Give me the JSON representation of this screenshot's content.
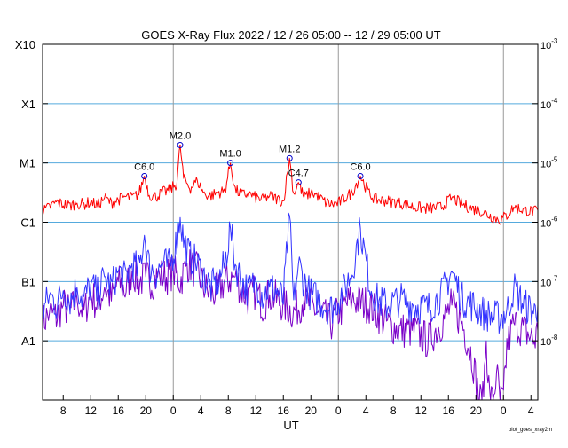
{
  "chart_data": {
    "type": "line",
    "title": "GOES X-Ray Flux   2022 / 12 / 26   05:00 -- 12 / 29   05:00   UT",
    "xlabel": "UT",
    "footer_note": "plot_goes_xray2m",
    "x_range_hours": [
      5,
      77
    ],
    "x_ticks": [
      {
        "h": 8,
        "label": "8"
      },
      {
        "h": 12,
        "label": "12"
      },
      {
        "h": 16,
        "label": "16"
      },
      {
        "h": 20,
        "label": "20"
      },
      {
        "h": 24,
        "label": "0"
      },
      {
        "h": 28,
        "label": "4"
      },
      {
        "h": 32,
        "label": "8"
      },
      {
        "h": 36,
        "label": "12"
      },
      {
        "h": 40,
        "label": "16"
      },
      {
        "h": 44,
        "label": "20"
      },
      {
        "h": 48,
        "label": "0"
      },
      {
        "h": 52,
        "label": "4"
      },
      {
        "h": 56,
        "label": "8"
      },
      {
        "h": 60,
        "label": "12"
      },
      {
        "h": 64,
        "label": "16"
      },
      {
        "h": 68,
        "label": "20"
      },
      {
        "h": 72,
        "label": "0"
      },
      {
        "h": 76,
        "label": "4"
      }
    ],
    "day_boundaries_hours": [
      24,
      48,
      72
    ],
    "y_scale": "log",
    "ylim_exponent": [
      -9,
      -3
    ],
    "y_ticks_left": [
      {
        "exp": -3,
        "label": "X10"
      },
      {
        "exp": -4,
        "label": "X1"
      },
      {
        "exp": -5,
        "label": "M1"
      },
      {
        "exp": -6,
        "label": "C1"
      },
      {
        "exp": -7,
        "label": "B1"
      },
      {
        "exp": -8,
        "label": "A1"
      }
    ],
    "y_ticks_right": [
      {
        "exp": -3,
        "base": "10",
        "sup": "-3"
      },
      {
        "exp": -4,
        "base": "10",
        "sup": "-4"
      },
      {
        "exp": -5,
        "base": "10",
        "sup": "-5"
      },
      {
        "exp": -6,
        "base": "10",
        "sup": "-6"
      },
      {
        "exp": -7,
        "base": "10",
        "sup": "-7"
      },
      {
        "exp": -8,
        "base": "10",
        "sup": "-8"
      }
    ],
    "grid_exponents": [
      -4,
      -5,
      -6,
      -7,
      -8
    ],
    "colors": {
      "long": "#ff0000",
      "short": "#3333ff",
      "short_alt": "#7a00c8",
      "grid": "#55aadd",
      "day_line": "#999999",
      "marker": "#0000cc"
    },
    "series": [
      {
        "key": "long",
        "color": "#ff0000",
        "points": [
          [
            5,
            1.5e-06
          ],
          [
            6,
            1.8e-06
          ],
          [
            7,
            2.2e-06
          ],
          [
            8,
            2e-06
          ],
          [
            9,
            1.9e-06
          ],
          [
            10,
            2.1e-06
          ],
          [
            11,
            2e-06
          ],
          [
            12,
            2.2e-06
          ],
          [
            13,
            1.9e-06
          ],
          [
            14,
            2.6e-06
          ],
          [
            15,
            2.1e-06
          ],
          [
            16,
            2.4e-06
          ],
          [
            17,
            2.7e-06
          ],
          [
            18,
            2.6e-06
          ],
          [
            19,
            3e-06
          ],
          [
            19.8,
            6e-06
          ],
          [
            20.5,
            2.9e-06
          ],
          [
            21.5,
            2.7e-06
          ],
          [
            22.5,
            3.2e-06
          ],
          [
            23.5,
            3.5e-06
          ],
          [
            24.5,
            4.5e-06
          ],
          [
            25,
            2e-05
          ],
          [
            25.5,
            5.5e-06
          ],
          [
            26.5,
            3.8e-06
          ],
          [
            27.5,
            5e-06
          ],
          [
            28.5,
            3e-06
          ],
          [
            29.5,
            2.8e-06
          ],
          [
            30.5,
            3.2e-06
          ],
          [
            31.5,
            3.3e-06
          ],
          [
            32.3,
            1e-05
          ],
          [
            33,
            3.5e-06
          ],
          [
            34,
            2.9e-06
          ],
          [
            35,
            3e-06
          ],
          [
            36,
            2.6e-06
          ],
          [
            37,
            2.4e-06
          ],
          [
            38,
            2.8e-06
          ],
          [
            39,
            2.5e-06
          ],
          [
            40,
            2.2e-06
          ],
          [
            40.9,
            1.2e-05
          ],
          [
            41.5,
            3e-06
          ],
          [
            42.2,
            4.7e-06
          ],
          [
            43,
            2.6e-06
          ],
          [
            44,
            3.2e-06
          ],
          [
            45,
            2.8e-06
          ],
          [
            46,
            2.2e-06
          ],
          [
            47,
            2e-06
          ],
          [
            48,
            2.1e-06
          ],
          [
            49,
            2.6e-06
          ],
          [
            50,
            3.2e-06
          ],
          [
            51.2,
            6e-06
          ],
          [
            52.5,
            3e-06
          ],
          [
            53.5,
            2.4e-06
          ],
          [
            55,
            2.3e-06
          ],
          [
            57,
            2.1e-06
          ],
          [
            59,
            1.8e-06
          ],
          [
            61,
            1.7e-06
          ],
          [
            63,
            1.8e-06
          ],
          [
            64.5,
            2.6e-06
          ],
          [
            66,
            2e-06
          ],
          [
            67.5,
            1.7e-06
          ],
          [
            69,
            1.5e-06
          ],
          [
            70.5,
            1.2e-06
          ],
          [
            71.5,
            1.1e-06
          ],
          [
            72.5,
            1.3e-06
          ],
          [
            73.5,
            1.8e-06
          ],
          [
            75,
            1.6e-06
          ],
          [
            76.5,
            1.5e-06
          ],
          [
            77,
            1.6e-06
          ]
        ]
      },
      {
        "key": "short",
        "color": "#3333ff",
        "points": [
          [
            5,
            3e-08
          ],
          [
            6,
            6e-08
          ],
          [
            7,
            4e-08
          ],
          [
            8,
            7e-08
          ],
          [
            9,
            5e-08
          ],
          [
            10,
            8e-08
          ],
          [
            11,
            5e-08
          ],
          [
            12,
            9e-08
          ],
          [
            13,
            6e-08
          ],
          [
            14,
            1.2e-07
          ],
          [
            15,
            8e-08
          ],
          [
            16,
            1.5e-07
          ],
          [
            17,
            1.1e-07
          ],
          [
            18,
            2e-07
          ],
          [
            19,
            1.5e-07
          ],
          [
            19.8,
            6e-07
          ],
          [
            20.5,
            1.8e-07
          ],
          [
            21.5,
            1.4e-07
          ],
          [
            22.5,
            2e-07
          ],
          [
            23.5,
            1.8e-07
          ],
          [
            24.5,
            5e-07
          ],
          [
            25,
            1.2e-06
          ],
          [
            25.5,
            5e-07
          ],
          [
            26.5,
            2.5e-07
          ],
          [
            27.5,
            2e-07
          ],
          [
            28.5,
            1.2e-07
          ],
          [
            29.5,
            8e-08
          ],
          [
            30.5,
            1e-07
          ],
          [
            31.5,
            2e-07
          ],
          [
            32.3,
            8e-07
          ],
          [
            33,
            2e-07
          ],
          [
            34,
            1e-07
          ],
          [
            35,
            7e-08
          ],
          [
            36,
            1e-07
          ],
          [
            37,
            6e-08
          ],
          [
            38,
            8e-08
          ],
          [
            39,
            7e-08
          ],
          [
            40,
            5e-08
          ],
          [
            40.9,
            1.3e-06
          ],
          [
            41.5,
            4e-08
          ],
          [
            42.2,
            2e-07
          ],
          [
            43,
            1e-07
          ],
          [
            44,
            6e-08
          ],
          [
            45,
            5e-08
          ],
          [
            46,
            4e-08
          ],
          [
            47,
            3.5e-08
          ],
          [
            48,
            5e-08
          ],
          [
            49,
            8e-08
          ],
          [
            50,
            1.5e-07
          ],
          [
            51.2,
            8e-07
          ],
          [
            52.5,
            1e-07
          ],
          [
            53.5,
            5e-08
          ],
          [
            55,
            4e-08
          ],
          [
            57,
            5e-08
          ],
          [
            59,
            4e-08
          ],
          [
            61,
            3.5e-08
          ],
          [
            63,
            6e-08
          ],
          [
            64.5,
            1.5e-07
          ],
          [
            66,
            5e-08
          ],
          [
            67.5,
            4e-08
          ],
          [
            69,
            3e-08
          ],
          [
            70.5,
            2.5e-08
          ],
          [
            71.5,
            2.5e-08
          ],
          [
            72.5,
            3e-08
          ],
          [
            73.5,
            8e-08
          ],
          [
            75,
            4e-08
          ],
          [
            76.5,
            3e-08
          ],
          [
            77,
            4e-08
          ]
        ]
      },
      {
        "key": "short_alt",
        "color": "#7a00c8",
        "points": [
          [
            5,
            2e-08
          ],
          [
            6,
            3e-08
          ],
          [
            7,
            2.5e-08
          ],
          [
            8,
            4e-08
          ],
          [
            9,
            3e-08
          ],
          [
            10,
            5e-08
          ],
          [
            11,
            3e-08
          ],
          [
            12,
            6e-08
          ],
          [
            13,
            4e-08
          ],
          [
            14,
            8e-08
          ],
          [
            15,
            5e-08
          ],
          [
            16,
            1e-07
          ],
          [
            17,
            7e-08
          ],
          [
            18,
            1.5e-07
          ],
          [
            19,
            1e-07
          ],
          [
            20,
            1.2e-07
          ],
          [
            21,
            1e-07
          ],
          [
            22,
            1.3e-07
          ],
          [
            23,
            1.2e-07
          ],
          [
            24,
            1.5e-07
          ],
          [
            25,
            1e-07
          ],
          [
            26,
            2e-07
          ],
          [
            27.5,
            1.5e-07
          ],
          [
            28.5,
            8e-08
          ],
          [
            29.5,
            6e-08
          ],
          [
            30.5,
            7e-08
          ],
          [
            31.5,
            1e-07
          ],
          [
            33,
            1.2e-07
          ],
          [
            34,
            7e-08
          ],
          [
            35,
            5e-08
          ],
          [
            36,
            7e-08
          ],
          [
            37,
            4e-08
          ],
          [
            38,
            6e-08
          ],
          [
            39,
            5e-08
          ],
          [
            40,
            4e-08
          ],
          [
            41.5,
            3e-08
          ],
          [
            43,
            5e-08
          ],
          [
            44,
            4e-08
          ],
          [
            45,
            3e-08
          ],
          [
            46,
            2.5e-08
          ],
          [
            47,
            2e-08
          ],
          [
            48,
            3e-08
          ],
          [
            49,
            4e-08
          ],
          [
            50,
            5e-08
          ],
          [
            52.5,
            4e-08
          ],
          [
            53.5,
            3e-08
          ],
          [
            55,
            2e-08
          ],
          [
            57,
            1.5e-08
          ],
          [
            59,
            1.5e-08
          ],
          [
            61,
            1e-08
          ],
          [
            63,
            2e-08
          ],
          [
            64.5,
            4e-08
          ],
          [
            66,
            2e-08
          ],
          [
            67.5,
            5e-09
          ],
          [
            68.5,
            1e-09
          ],
          [
            69,
            1e-09
          ],
          [
            69.5,
            1e-08
          ],
          [
            70,
            1e-09
          ],
          [
            70.5,
            1e-09
          ],
          [
            71,
            3e-09
          ],
          [
            71.5,
            1e-09
          ],
          [
            72,
            1e-09
          ],
          [
            72.5,
            8e-09
          ],
          [
            73.5,
            2e-08
          ],
          [
            75,
            1.5e-08
          ],
          [
            76.5,
            1e-08
          ],
          [
            77,
            1.5e-08
          ]
        ]
      }
    ],
    "annotations": [
      {
        "label": "C6.0",
        "h": 19.8,
        "flux": 6e-06
      },
      {
        "label": "M2.0",
        "h": 25.0,
        "flux": 2e-05
      },
      {
        "label": "M1.0",
        "h": 32.3,
        "flux": 1e-05
      },
      {
        "label": "M1.2",
        "h": 40.9,
        "flux": 1.2e-05
      },
      {
        "label": "C4.7",
        "h": 42.2,
        "flux": 4.7e-06
      },
      {
        "label": "C6.0",
        "h": 51.2,
        "flux": 6e-06
      }
    ]
  }
}
